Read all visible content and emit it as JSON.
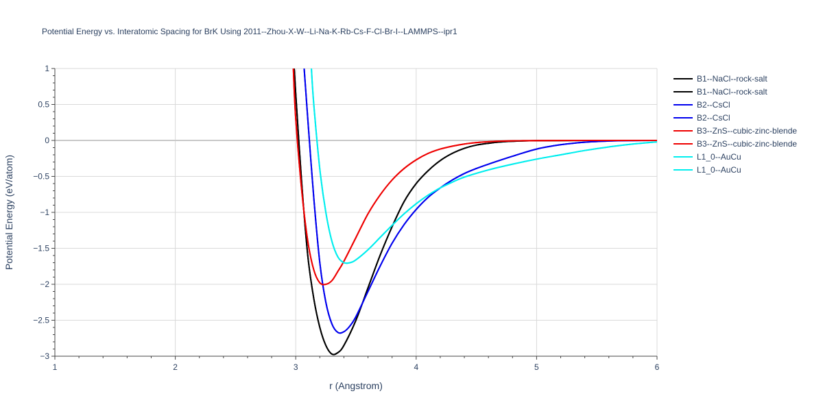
{
  "chart_data": {
    "type": "line",
    "title": "Potential Energy vs. Interatomic Spacing for BrK Using 2011--Zhou-X-W--Li-Na-K-Rb-Cs-F-Cl-Br-I--LAMMPS--ipr1",
    "xlabel": "r (Angstrom)",
    "ylabel": "Potential Energy (eV/atom)",
    "xlim": [
      1,
      6
    ],
    "ylim": [
      -3,
      1
    ],
    "x_ticks": [
      1,
      2,
      3,
      4,
      5,
      6
    ],
    "x_tick_labels": [
      "1",
      "2",
      "3",
      "4",
      "5",
      "6"
    ],
    "y_ticks": [
      -3,
      -2.5,
      -2,
      -1.5,
      -1,
      -0.5,
      0,
      0.5,
      1
    ],
    "y_tick_labels": [
      "−3",
      "−2.5",
      "−2",
      "−1.5",
      "−1",
      "−0.5",
      "0",
      "0.5",
      "1"
    ],
    "grid": true,
    "legend_position": "right",
    "series": [
      {
        "name": "B1--NaCl--rock-salt",
        "color": "#000000",
        "x": [
          2.98,
          3.0,
          3.05,
          3.1,
          3.15,
          3.2,
          3.25,
          3.3,
          3.35,
          3.4,
          3.5,
          3.6,
          3.7,
          3.8,
          3.9,
          4.0,
          4.1,
          4.2,
          4.3,
          4.4,
          4.5,
          4.6,
          4.7,
          4.8,
          5.0,
          5.5,
          6.0
        ],
        "y": [
          1.2,
          0.65,
          -0.6,
          -1.6,
          -2.2,
          -2.6,
          -2.85,
          -2.97,
          -2.95,
          -2.85,
          -2.5,
          -2.05,
          -1.6,
          -1.2,
          -0.85,
          -0.6,
          -0.42,
          -0.28,
          -0.18,
          -0.11,
          -0.065,
          -0.04,
          -0.022,
          -0.012,
          -0.004,
          0.0,
          0.0
        ]
      },
      {
        "name": "B1--NaCl--rock-salt",
        "color": "#000000",
        "x": [
          2.98,
          3.0,
          3.05,
          3.1,
          3.15,
          3.2,
          3.25,
          3.3,
          3.35,
          3.4,
          3.5,
          3.6,
          3.7,
          3.8,
          3.9,
          4.0,
          4.1,
          4.2,
          4.3,
          4.4,
          4.5,
          4.6,
          4.7,
          4.8,
          5.0,
          5.5,
          6.0
        ],
        "y": [
          1.2,
          0.65,
          -0.6,
          -1.6,
          -2.2,
          -2.6,
          -2.85,
          -2.97,
          -2.95,
          -2.85,
          -2.5,
          -2.05,
          -1.6,
          -1.2,
          -0.85,
          -0.6,
          -0.42,
          -0.28,
          -0.18,
          -0.11,
          -0.065,
          -0.04,
          -0.022,
          -0.012,
          -0.004,
          0.0,
          0.0
        ]
      },
      {
        "name": "B2--CsCl",
        "color": "#0000ee",
        "x": [
          3.07,
          3.1,
          3.15,
          3.2,
          3.25,
          3.3,
          3.35,
          3.4,
          3.45,
          3.5,
          3.6,
          3.7,
          3.8,
          3.9,
          4.0,
          4.1,
          4.2,
          4.3,
          4.4,
          4.5,
          4.6,
          4.8,
          5.0,
          5.2,
          5.4,
          5.6,
          5.8,
          6.0
        ],
        "y": [
          1.0,
          0.3,
          -0.8,
          -1.7,
          -2.25,
          -2.55,
          -2.67,
          -2.66,
          -2.58,
          -2.45,
          -2.1,
          -1.75,
          -1.43,
          -1.17,
          -0.96,
          -0.79,
          -0.66,
          -0.55,
          -0.46,
          -0.39,
          -0.33,
          -0.22,
          -0.12,
          -0.06,
          -0.025,
          -0.008,
          -0.002,
          0.0
        ]
      },
      {
        "name": "B2--CsCl",
        "color": "#0000ee",
        "x": [
          3.07,
          3.1,
          3.15,
          3.2,
          3.25,
          3.3,
          3.35,
          3.4,
          3.45,
          3.5,
          3.6,
          3.7,
          3.8,
          3.9,
          4.0,
          4.1,
          4.2,
          4.3,
          4.4,
          4.5,
          4.6,
          4.8,
          5.0,
          5.2,
          5.4,
          5.6,
          5.8,
          6.0
        ],
        "y": [
          1.0,
          0.3,
          -0.8,
          -1.7,
          -2.25,
          -2.55,
          -2.67,
          -2.66,
          -2.58,
          -2.45,
          -2.1,
          -1.75,
          -1.43,
          -1.17,
          -0.96,
          -0.79,
          -0.66,
          -0.55,
          -0.46,
          -0.39,
          -0.33,
          -0.22,
          -0.12,
          -0.06,
          -0.025,
          -0.008,
          -0.002,
          0.0
        ]
      },
      {
        "name": "B3--ZnS--cubic-zinc-blende",
        "color": "#ee0000",
        "x": [
          2.98,
          3.0,
          3.05,
          3.1,
          3.15,
          3.2,
          3.25,
          3.3,
          3.35,
          3.4,
          3.5,
          3.6,
          3.7,
          3.8,
          3.9,
          4.0,
          4.1,
          4.2,
          4.3,
          4.4,
          4.5,
          4.6,
          4.7,
          4.8,
          5.0,
          5.5,
          6.0
        ],
        "y": [
          1.0,
          0.3,
          -0.7,
          -1.4,
          -1.8,
          -1.98,
          -2.0,
          -1.95,
          -1.82,
          -1.68,
          -1.35,
          -1.02,
          -0.76,
          -0.55,
          -0.39,
          -0.27,
          -0.18,
          -0.12,
          -0.08,
          -0.05,
          -0.03,
          -0.018,
          -0.01,
          -0.006,
          -0.002,
          0.0,
          0.0
        ]
      },
      {
        "name": "B3--ZnS--cubic-zinc-blende",
        "color": "#ee0000",
        "x": [
          2.98,
          3.0,
          3.05,
          3.1,
          3.15,
          3.2,
          3.25,
          3.3,
          3.35,
          3.4,
          3.5,
          3.6,
          3.7,
          3.8,
          3.9,
          4.0,
          4.1,
          4.2,
          4.3,
          4.4,
          4.5,
          4.6,
          4.7,
          4.8,
          5.0,
          5.5,
          6.0
        ],
        "y": [
          1.0,
          0.3,
          -0.7,
          -1.4,
          -1.8,
          -1.98,
          -2.0,
          -1.95,
          -1.82,
          -1.68,
          -1.35,
          -1.02,
          -0.76,
          -0.55,
          -0.39,
          -0.27,
          -0.18,
          -0.12,
          -0.08,
          -0.05,
          -0.03,
          -0.018,
          -0.01,
          -0.006,
          -0.002,
          0.0,
          0.0
        ]
      },
      {
        "name": "L1_0--AuCu",
        "color": "#00eeee",
        "x": [
          3.13,
          3.15,
          3.2,
          3.25,
          3.3,
          3.35,
          3.4,
          3.45,
          3.5,
          3.6,
          3.7,
          3.8,
          3.9,
          4.0,
          4.1,
          4.2,
          4.3,
          4.4,
          4.6,
          4.8,
          5.0,
          5.2,
          5.4,
          5.6,
          5.8,
          6.0
        ],
        "y": [
          1.0,
          0.5,
          -0.4,
          -1.0,
          -1.4,
          -1.62,
          -1.7,
          -1.7,
          -1.66,
          -1.52,
          -1.35,
          -1.18,
          -1.02,
          -0.88,
          -0.76,
          -0.66,
          -0.58,
          -0.51,
          -0.41,
          -0.33,
          -0.26,
          -0.2,
          -0.14,
          -0.09,
          -0.05,
          -0.02
        ]
      },
      {
        "name": "L1_0--AuCu",
        "color": "#00eeee",
        "x": [
          3.13,
          3.15,
          3.2,
          3.25,
          3.3,
          3.35,
          3.4,
          3.45,
          3.5,
          3.6,
          3.7,
          3.8,
          3.9,
          4.0,
          4.1,
          4.2,
          4.3,
          4.4,
          4.6,
          4.8,
          5.0,
          5.2,
          5.4,
          5.6,
          5.8,
          6.0
        ],
        "y": [
          1.0,
          0.5,
          -0.4,
          -1.0,
          -1.4,
          -1.62,
          -1.7,
          -1.7,
          -1.66,
          -1.52,
          -1.35,
          -1.18,
          -1.02,
          -0.88,
          -0.76,
          -0.66,
          -0.58,
          -0.51,
          -0.41,
          -0.33,
          -0.26,
          -0.2,
          -0.14,
          -0.09,
          -0.05,
          -0.02
        ]
      }
    ]
  }
}
